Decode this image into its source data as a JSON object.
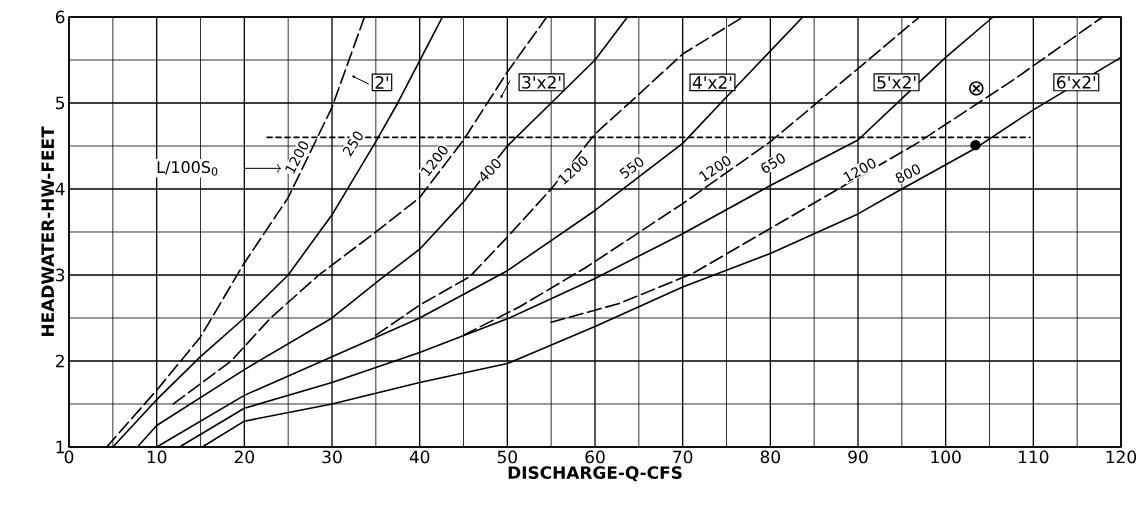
{
  "chart_data": {
    "type": "line",
    "xlabel": "DISCHARGE-Q-CFS",
    "ylabel": "HEADWATER-HW-FEET",
    "xlim": [
      0,
      120
    ],
    "ylim": [
      1,
      6
    ],
    "xticks": [
      0,
      10,
      20,
      30,
      40,
      50,
      60,
      70,
      80,
      90,
      100,
      110,
      120
    ],
    "yticks": [
      1,
      2,
      3,
      4,
      5,
      6
    ],
    "grid": true,
    "series": [
      {
        "color": "#000000",
        "line_style": "dashed",
        "x": [
          4.3,
          10,
          15,
          20,
          25,
          30,
          33.7
        ],
        "values": [
          1,
          1.66,
          2.28,
          3.14,
          3.9,
          4.95,
          6
        ]
      },
      {
        "color": "#000000",
        "line_style": "solid",
        "x": [
          5,
          10,
          15,
          20,
          25,
          30,
          35,
          37.5,
          42.6
        ],
        "values": [
          1,
          1.55,
          2.05,
          2.5,
          3.0,
          3.7,
          4.55,
          5,
          6
        ]
      },
      {
        "color": "#000000",
        "line_style": "dashed",
        "x": [
          11.9,
          18.5,
          23,
          28.5,
          35,
          40,
          45,
          50,
          54.5
        ],
        "values": [
          1.5,
          2,
          2.5,
          3,
          3.5,
          3.9,
          4.57,
          5.36,
          6
        ]
      },
      {
        "color": "#000000",
        "line_style": "solid",
        "x": [
          7.8,
          10,
          20,
          30,
          35.5,
          40,
          45,
          50,
          55,
          60,
          63.7
        ],
        "values": [
          1,
          1.25,
          1.9,
          2.5,
          2.95,
          3.3,
          3.85,
          4.5,
          5,
          5.5,
          6
        ]
      },
      {
        "color": "#000000",
        "line_style": "dashed",
        "x": [
          35,
          40,
          45.7,
          50,
          55,
          60,
          65,
          70,
          76.9
        ],
        "values": [
          2.3,
          2.65,
          2.98,
          3.44,
          4.0,
          4.64,
          5.1,
          5.57,
          6
        ]
      },
      {
        "color": "#000000",
        "line_style": "solid",
        "x": [
          10,
          20,
          30,
          40,
          50,
          60,
          70,
          75,
          83.7
        ],
        "values": [
          1,
          1.6,
          2.05,
          2.5,
          3.05,
          3.75,
          4.53,
          5.07,
          6
        ]
      },
      {
        "color": "#000000",
        "line_style": "dashed",
        "x": [
          45,
          51.4,
          59,
          70,
          80,
          85.3,
          90,
          97
        ],
        "values": [
          2.3,
          2.63,
          3.09,
          3.83,
          4.55,
          5.0,
          5.4,
          6
        ]
      },
      {
        "color": "#000000",
        "line_style": "solid",
        "x": [
          12.6,
          20,
          30,
          40,
          50,
          60,
          70,
          80,
          90,
          95,
          100,
          105.4
        ],
        "values": [
          1,
          1.45,
          1.75,
          2.1,
          2.49,
          2.96,
          3.48,
          4.04,
          4.57,
          5.05,
          5.53,
          6
        ]
      },
      {
        "color": "#000000",
        "line_style": "dashed",
        "x": [
          55,
          62.8,
          71.2,
          84.2,
          96.7,
          107.6,
          117.9
        ],
        "values": [
          2.45,
          2.67,
          3.02,
          3.79,
          4.53,
          5.26,
          6
        ]
      },
      {
        "color": "#000000",
        "line_style": "solid",
        "x": [
          15.2,
          20,
          30,
          40,
          50,
          60,
          70,
          80,
          90,
          95,
          103.5,
          110,
          120
        ],
        "values": [
          1,
          1.3,
          1.5,
          1.75,
          1.97,
          2.4,
          2.86,
          3.25,
          3.71,
          4.0,
          4.48,
          4.92,
          5.53
        ]
      },
      {
        "color": "#000000",
        "line_style": "dotted",
        "x": [
          22.6,
          109.6
        ],
        "values": [
          4.6,
          4.6
        ]
      },
      {
        "type": "scatter",
        "color": "#000000",
        "marker": "circle",
        "x": [
          103.4
        ],
        "values": [
          4.51
        ]
      }
    ],
    "annotations": [
      "2'",
      "3'x2'",
      "4'x2'",
      "5'x2'",
      "6'x2'",
      {
        "text": "1200",
        "x": 26,
        "y": 4.37
      },
      {
        "text": "250",
        "x": 32.4,
        "y": 4.53
      },
      {
        "text": "1200",
        "x": 41.7,
        "y": 4.33
      },
      {
        "text": "400",
        "x": 48,
        "y": 4.22
      },
      {
        "text": "1200",
        "x": 57.5,
        "y": 4.22
      },
      {
        "text": "550",
        "x": 64.2,
        "y": 4.25
      },
      {
        "text": "1200",
        "x": 73.7,
        "y": 4.24
      },
      {
        "text": "650",
        "x": 80.3,
        "y": 4.3
      },
      {
        "text": "1200",
        "x": 90.2,
        "y": 4.22
      },
      {
        "text": "800",
        "x": 95.7,
        "y": 4.18
      },
      "L/100S$_{0}$",
      "⊗"
    ]
  }
}
